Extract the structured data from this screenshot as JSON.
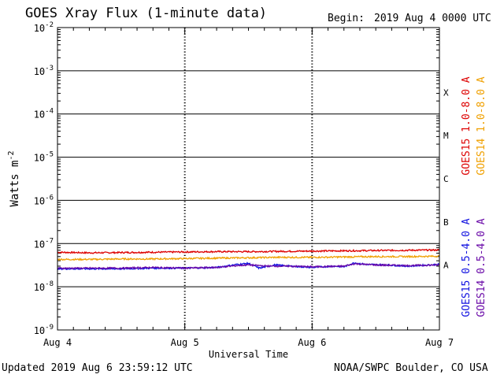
{
  "header": {
    "title": "GOES Xray Flux (1-minute data)",
    "begin_label": "Begin:",
    "begin_value": "2019 Aug 4 0000 UTC"
  },
  "footer": {
    "updated": "Updated 2019 Aug  6 23:59:12 UTC",
    "credit": "NOAA/SWPC Boulder, CO USA"
  },
  "chart_data": {
    "type": "line",
    "title": "GOES Xray Flux (1-minute data)",
    "xlabel": "Universal Time",
    "ylabel": "Watts m",
    "ylabel_superscript": "-2",
    "y_scale": "log",
    "ylim": [
      1e-09,
      0.01
    ],
    "xlim": [
      0,
      72
    ],
    "x_unit": "hours since 2019 Aug 4 0000 UTC",
    "x_ticks": [
      {
        "x": 0,
        "label": "Aug 4"
      },
      {
        "x": 24,
        "label": "Aug 5"
      },
      {
        "x": 48,
        "label": "Aug 6"
      },
      {
        "x": 72,
        "label": "Aug 7"
      }
    ],
    "y_ticks": [
      {
        "exp": -9,
        "base": "10",
        "sup": "-9"
      },
      {
        "exp": -8,
        "base": "10",
        "sup": "-8"
      },
      {
        "exp": -7,
        "base": "10",
        "sup": "-7"
      },
      {
        "exp": -6,
        "base": "10",
        "sup": "-6"
      },
      {
        "exp": -5,
        "base": "10",
        "sup": "-5"
      },
      {
        "exp": -4,
        "base": "10",
        "sup": "-4"
      },
      {
        "exp": -3,
        "base": "10",
        "sup": "-3"
      },
      {
        "exp": -2,
        "base": "10",
        "sup": "-2"
      }
    ],
    "flare_classes": [
      {
        "label": "A",
        "exp": -8
      },
      {
        "label": "B",
        "exp": -7
      },
      {
        "label": "C",
        "exp": -6
      },
      {
        "label": "M",
        "exp": -5
      },
      {
        "label": "X",
        "exp": -4
      }
    ],
    "grid": true,
    "legend_position": "right",
    "series": [
      {
        "name": "GOES15 1.0-8.0 A",
        "color": "#dd0000",
        "points": [
          [
            0,
            6.3e-08
          ],
          [
            6,
            6.1e-08
          ],
          [
            12,
            6.2e-08
          ],
          [
            18,
            6.3e-08
          ],
          [
            24,
            6.4e-08
          ],
          [
            30,
            6.5e-08
          ],
          [
            36,
            6.5e-08
          ],
          [
            42,
            6.6e-08
          ],
          [
            48,
            6.7e-08
          ],
          [
            54,
            6.8e-08
          ],
          [
            60,
            6.9e-08
          ],
          [
            66,
            7e-08
          ],
          [
            72,
            7.1e-08
          ]
        ]
      },
      {
        "name": "GOES14 1.0-8.0 A",
        "color": "#f0a000",
        "points": [
          [
            0,
            4.3e-08
          ],
          [
            6,
            4.3e-08
          ],
          [
            12,
            4.4e-08
          ],
          [
            18,
            4.4e-08
          ],
          [
            24,
            4.5e-08
          ],
          [
            30,
            4.6e-08
          ],
          [
            36,
            4.7e-08
          ],
          [
            42,
            4.8e-08
          ],
          [
            48,
            4.8e-08
          ],
          [
            54,
            4.9e-08
          ],
          [
            60,
            5e-08
          ],
          [
            66,
            5e-08
          ],
          [
            72,
            5.1e-08
          ]
        ]
      },
      {
        "name": "GOES15 0.5-4.0 A",
        "color": "#1010e0",
        "points": [
          [
            0,
            2.6e-08
          ],
          [
            6,
            2.6e-08
          ],
          [
            12,
            2.6e-08
          ],
          [
            18,
            2.7e-08
          ],
          [
            24,
            2.7e-08
          ],
          [
            30,
            2.8e-08
          ],
          [
            34,
            3.3e-08
          ],
          [
            36,
            3.5e-08
          ],
          [
            38,
            2.7e-08
          ],
          [
            41,
            3.2e-08
          ],
          [
            44,
            3e-08
          ],
          [
            48,
            2.8e-08
          ],
          [
            52,
            3e-08
          ],
          [
            54,
            2.9e-08
          ],
          [
            56,
            3.6e-08
          ],
          [
            58,
            3.3e-08
          ],
          [
            62,
            3.2e-08
          ],
          [
            66,
            3e-08
          ],
          [
            72,
            3.3e-08
          ]
        ]
      },
      {
        "name": "GOES14 0.5-4.0 A",
        "color": "#6a0aa8",
        "points": [
          [
            0,
            2.7e-08
          ],
          [
            6,
            2.7e-08
          ],
          [
            12,
            2.7e-08
          ],
          [
            18,
            2.8e-08
          ],
          [
            24,
            2.7e-08
          ],
          [
            30,
            2.8e-08
          ],
          [
            34,
            3.1e-08
          ],
          [
            36,
            3.2e-08
          ],
          [
            40,
            3e-08
          ],
          [
            44,
            3e-08
          ],
          [
            48,
            2.9e-08
          ],
          [
            54,
            3e-08
          ],
          [
            56,
            3.4e-08
          ],
          [
            60,
            3.2e-08
          ],
          [
            66,
            3.1e-08
          ],
          [
            72,
            3.2e-08
          ]
        ]
      }
    ]
  }
}
